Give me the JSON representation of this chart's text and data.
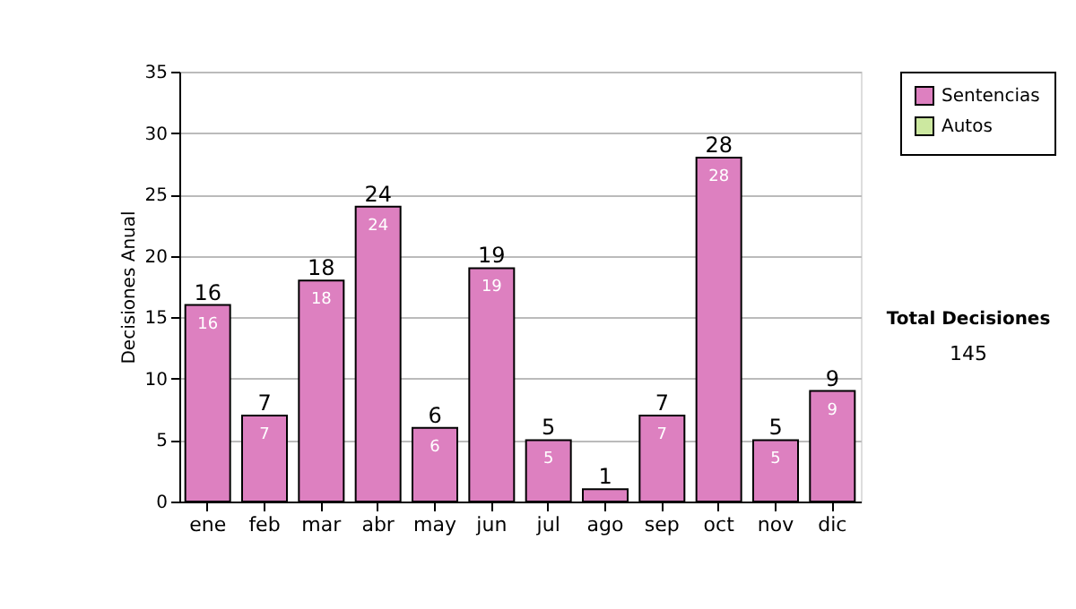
{
  "chart_data": {
    "type": "bar",
    "stacked": true,
    "ylabel": "Decisiones Anual",
    "categories": [
      "ene",
      "feb",
      "mar",
      "abr",
      "may",
      "jun",
      "jul",
      "ago",
      "sep",
      "oct",
      "nov",
      "dic"
    ],
    "series": [
      {
        "name": "Sentencias",
        "color": "#dd80c0",
        "values": [
          16,
          7,
          18,
          24,
          6,
          19,
          5,
          1,
          7,
          28,
          5,
          9
        ],
        "value_labels": [
          "16",
          "7",
          "18",
          "24",
          "6",
          "19",
          "5",
          null,
          "7",
          "28",
          "5",
          "9"
        ]
      },
      {
        "name": "Autos",
        "color": "#cce8a0",
        "values": [
          null,
          null,
          null,
          null,
          null,
          null,
          null,
          null,
          null,
          null,
          null,
          null
        ]
      }
    ],
    "totals": [
      "16",
      "7",
      "18",
      "24",
      "6",
      "19",
      "5",
      "1",
      "7",
      "28",
      "5",
      "9"
    ],
    "ylim": [
      0,
      35
    ],
    "yticks": [
      0,
      5,
      10,
      15,
      20,
      25,
      30,
      35
    ],
    "grid": "y",
    "legend": "top right",
    "annotations": [
      "Total Decisiones",
      "145"
    ]
  }
}
